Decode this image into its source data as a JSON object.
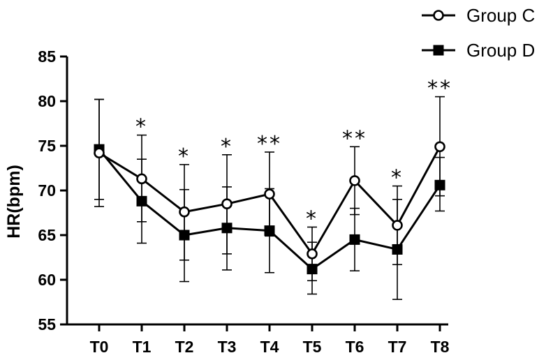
{
  "chart_data": {
    "type": "line",
    "title": "",
    "xlabel": "",
    "ylabel": "HR(bpm)",
    "ylim": [
      55,
      85
    ],
    "yticks": [
      55,
      60,
      65,
      70,
      75,
      80,
      85
    ],
    "categories": [
      "T0",
      "T1",
      "T2",
      "T3",
      "T4",
      "T5",
      "T6",
      "T7",
      "T8"
    ],
    "legend_position": "top-right",
    "grid": false,
    "series": [
      {
        "name": "Group C",
        "marker": "open-circle",
        "color": "#000000",
        "values": [
          74.2,
          71.3,
          67.6,
          68.5,
          69.6,
          62.9,
          71.1,
          66.1,
          74.9
        ],
        "error_upper": [
          80.2,
          76.2,
          72.9,
          74.0,
          74.3,
          65.9,
          74.9,
          70.5,
          80.5
        ],
        "error_lower": [
          68.2,
          66.5,
          62.2,
          62.9,
          64.9,
          59.9,
          67.3,
          61.7,
          69.4
        ]
      },
      {
        "name": "Group D",
        "marker": "filled-square",
        "color": "#000000",
        "values": [
          74.6,
          68.8,
          65.0,
          65.8,
          65.5,
          61.2,
          64.5,
          63.4,
          70.6
        ],
        "error_upper": [
          80.2,
          73.5,
          70.1,
          70.4,
          70.2,
          64.2,
          68.0,
          69.0,
          73.7
        ],
        "error_lower": [
          69.0,
          64.1,
          59.8,
          61.1,
          60.8,
          58.4,
          61.0,
          57.8,
          67.7
        ]
      }
    ],
    "annotations": [
      "",
      "*",
      "*",
      "*",
      "**",
      "*",
      "**",
      "*",
      "**"
    ]
  }
}
